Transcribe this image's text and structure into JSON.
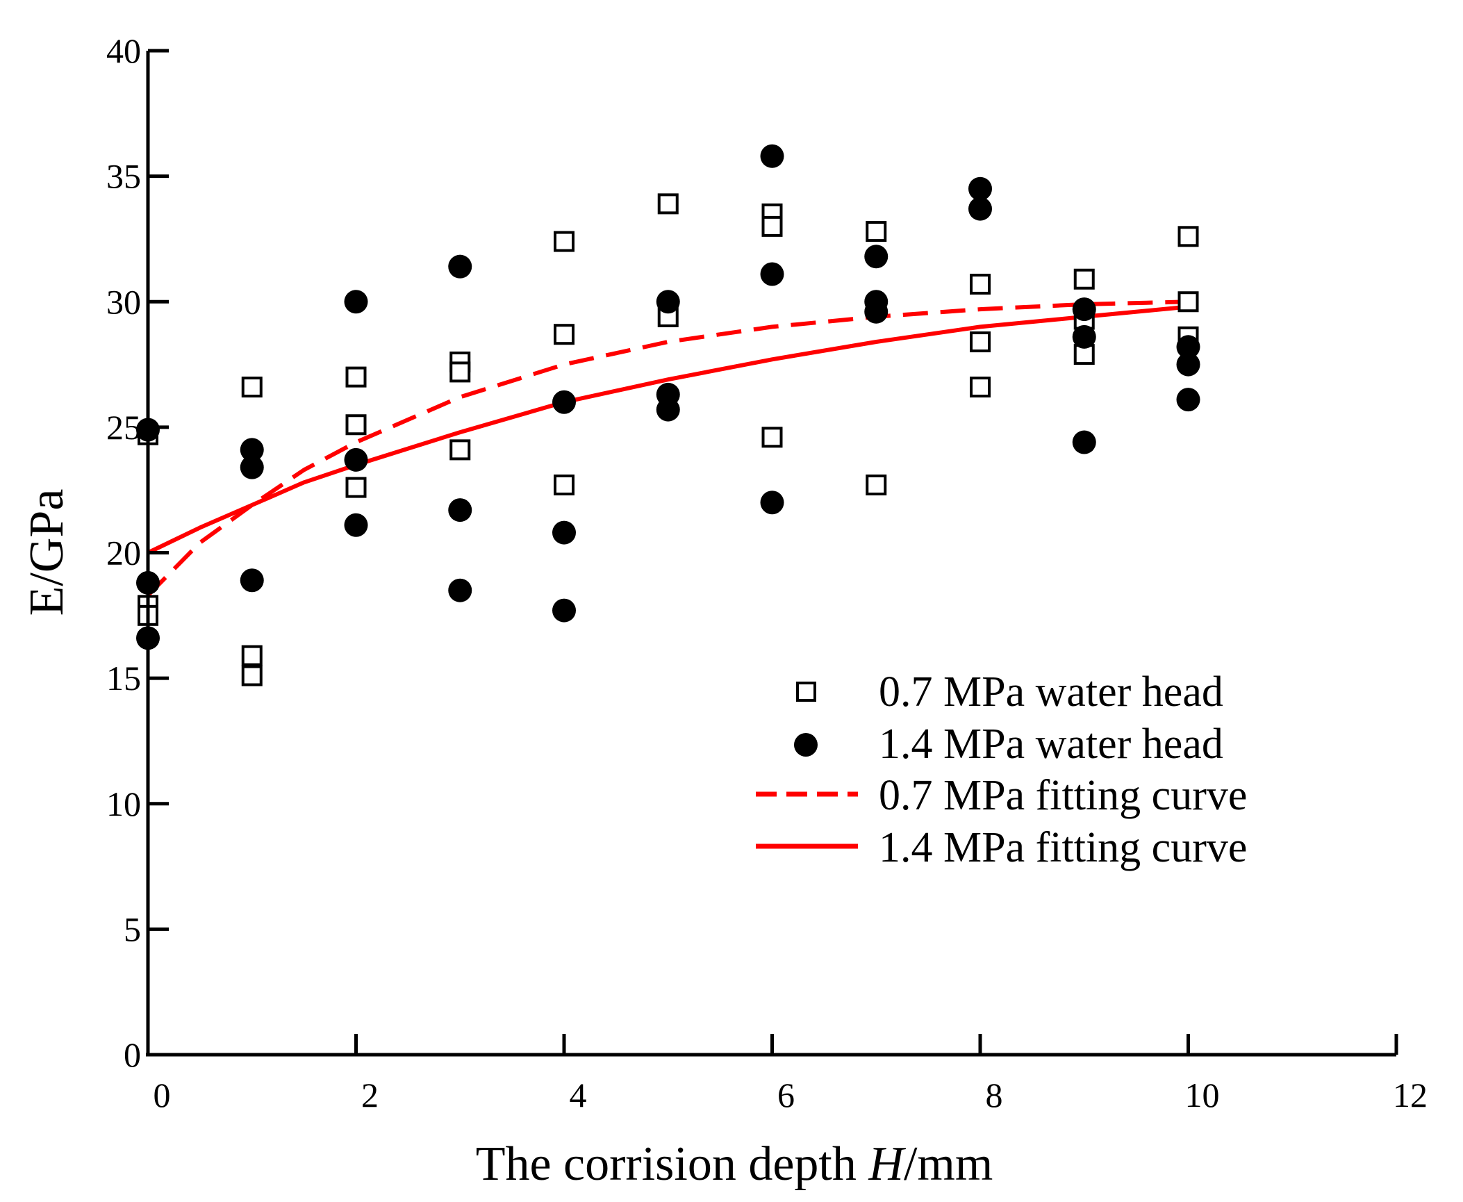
{
  "chart_data": {
    "type": "scatter",
    "title": "",
    "xlabel_prefix": "The corrision depth ",
    "xlabel_var": "H",
    "xlabel_suffix": "/mm",
    "ylabel": "E/GPa",
    "xlim": [
      0,
      12
    ],
    "ylim": [
      0,
      40
    ],
    "xticks": [
      0,
      2,
      4,
      6,
      8,
      10,
      12
    ],
    "xtick_labels": [
      "0",
      "2",
      "4",
      "6",
      "8",
      "10",
      "12"
    ],
    "yticks": [
      0,
      5,
      10,
      15,
      20,
      25,
      30,
      35,
      40
    ],
    "ytick_labels": [
      "0",
      "5",
      "10",
      "15",
      "20",
      "25",
      "30",
      "35",
      "40"
    ],
    "grid": false,
    "legend_position": "lower-right",
    "series": [
      {
        "name": "0.7 MPa water head",
        "kind": "scatter",
        "marker": "open-square",
        "color": "#000000",
        "points": [
          [
            0,
            24.7
          ],
          [
            0,
            17.9
          ],
          [
            0,
            17.5
          ],
          [
            1,
            26.6
          ],
          [
            1,
            15.9
          ],
          [
            1,
            15.1
          ],
          [
            2,
            27.0
          ],
          [
            2,
            25.1
          ],
          [
            2,
            22.6
          ],
          [
            3,
            27.6
          ],
          [
            3,
            27.2
          ],
          [
            3,
            24.1
          ],
          [
            4,
            32.4
          ],
          [
            4,
            28.7
          ],
          [
            4,
            22.7
          ],
          [
            5,
            33.9
          ],
          [
            5,
            29.4
          ],
          [
            6,
            33.5
          ],
          [
            6,
            33.0
          ],
          [
            6,
            24.6
          ],
          [
            7,
            32.8
          ],
          [
            7,
            22.7
          ],
          [
            8,
            30.7
          ],
          [
            8,
            28.4
          ],
          [
            8,
            26.6
          ],
          [
            9,
            30.9
          ],
          [
            9,
            29.3
          ],
          [
            9,
            27.9
          ],
          [
            10,
            32.6
          ],
          [
            10,
            30.0
          ],
          [
            10,
            28.6
          ]
        ]
      },
      {
        "name": "1.4 MPa water head",
        "kind": "scatter",
        "marker": "filled-circle",
        "color": "#000000",
        "points": [
          [
            0,
            24.9
          ],
          [
            0,
            18.8
          ],
          [
            0,
            16.6
          ],
          [
            1,
            24.1
          ],
          [
            1,
            23.4
          ],
          [
            1,
            18.9
          ],
          [
            2,
            30.0
          ],
          [
            2,
            23.7
          ],
          [
            2,
            21.1
          ],
          [
            3,
            31.4
          ],
          [
            3,
            21.7
          ],
          [
            3,
            18.5
          ],
          [
            4,
            26.0
          ],
          [
            4,
            20.8
          ],
          [
            4,
            17.7
          ],
          [
            5,
            30.0
          ],
          [
            5,
            26.3
          ],
          [
            5,
            25.7
          ],
          [
            6,
            35.8
          ],
          [
            6,
            31.1
          ],
          [
            6,
            22.0
          ],
          [
            7,
            31.8
          ],
          [
            7,
            30.0
          ],
          [
            7,
            29.6
          ],
          [
            8,
            34.5
          ],
          [
            8,
            33.7
          ],
          [
            9,
            29.7
          ],
          [
            9,
            28.6
          ],
          [
            9,
            24.4
          ],
          [
            10,
            28.2
          ],
          [
            10,
            27.5
          ],
          [
            10,
            26.1
          ]
        ]
      },
      {
        "name": "0.7 MPa fitting curve",
        "kind": "line",
        "style": "dashed",
        "color": "#ff0000",
        "x": [
          0,
          0.5,
          1,
          1.5,
          2,
          3,
          4,
          5,
          6,
          7,
          8,
          9,
          10
        ],
        "y": [
          18.3,
          20.4,
          21.9,
          23.3,
          24.4,
          26.2,
          27.5,
          28.4,
          29.0,
          29.4,
          29.7,
          29.9,
          30.0
        ]
      },
      {
        "name": "1.4 MPa fitting curve",
        "kind": "line",
        "style": "solid",
        "color": "#ff0000",
        "x": [
          0,
          0.5,
          1,
          1.5,
          2,
          3,
          4,
          5,
          6,
          7,
          8,
          9,
          10
        ],
        "y": [
          20.0,
          21.0,
          21.9,
          22.8,
          23.5,
          24.8,
          26.0,
          26.9,
          27.7,
          28.4,
          29.0,
          29.4,
          29.8
        ]
      }
    ]
  }
}
